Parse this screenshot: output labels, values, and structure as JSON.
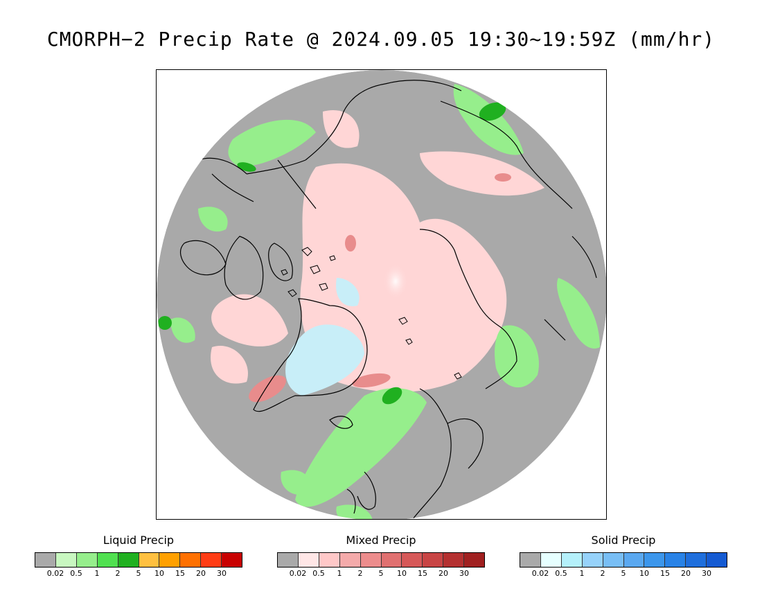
{
  "title": "CMORPH−2 Precip Rate @ 2024.09.05 19:30~19:59Z (mm/hr)",
  "colors": {
    "background_gray": "#a9a9a9",
    "coast": "#000000"
  },
  "legends": [
    {
      "key": "liquid",
      "title": "Liquid Precip",
      "colors": [
        "#a9a9a9",
        "#c8f7c0",
        "#96ee8c",
        "#50e050",
        "#20b020",
        "#ffc040",
        "#ffa000",
        "#ff7000",
        "#ff3c14",
        "#c80000"
      ],
      "ticks": [
        "0.02",
        "0.5",
        "1",
        "2",
        "5",
        "10",
        "15",
        "20",
        "30"
      ]
    },
    {
      "key": "mixed",
      "title": "Mixed Precip",
      "colors": [
        "#a9a9a9",
        "#ffe6e6",
        "#ffc8c8",
        "#f4aaaa",
        "#ec8c8c",
        "#e07070",
        "#d65858",
        "#c84444",
        "#b43030",
        "#a02020"
      ],
      "ticks": [
        "0.02",
        "0.5",
        "1",
        "2",
        "5",
        "10",
        "15",
        "20",
        "30"
      ]
    },
    {
      "key": "solid",
      "title": "Solid Precip",
      "colors": [
        "#a9a9a9",
        "#e6ffff",
        "#b4f0fa",
        "#96d2fa",
        "#78bef5",
        "#5aa8f0",
        "#3c96eb",
        "#2882e6",
        "#1e6edc",
        "#145ad2"
      ],
      "ticks": [
        "0.02",
        "0.5",
        "1",
        "2",
        "5",
        "10",
        "15",
        "20",
        "30"
      ]
    }
  ]
}
